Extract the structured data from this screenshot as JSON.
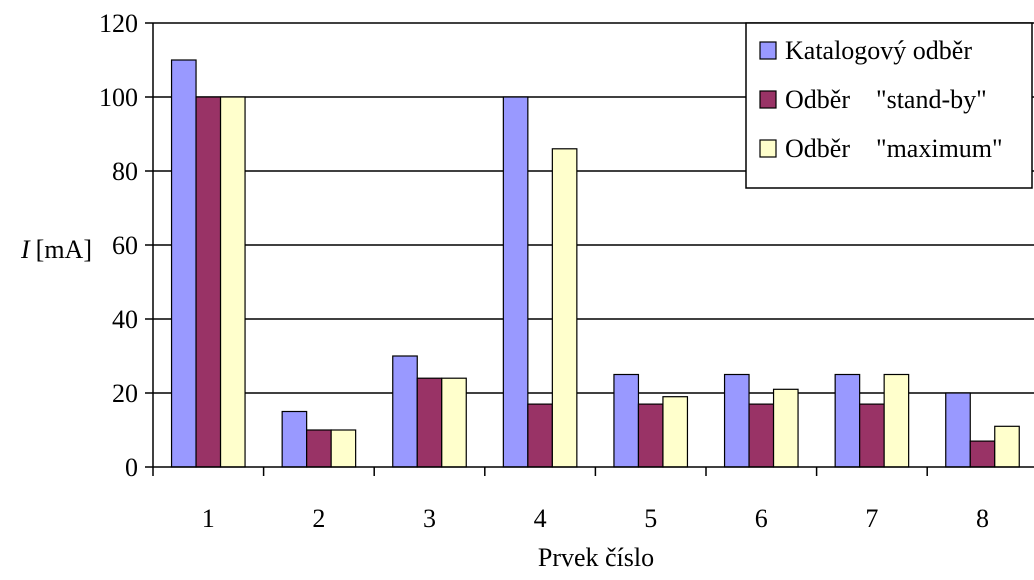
{
  "chart_data": {
    "type": "bar",
    "categories": [
      "1",
      "2",
      "3",
      "4",
      "5",
      "6",
      "7",
      "8"
    ],
    "series": [
      {
        "name": "Katalogový odběr",
        "color": "#9999ff",
        "values": [
          110,
          15,
          30,
          100,
          25,
          25,
          25,
          20
        ]
      },
      {
        "name": "Odběr    \"stand-by\"",
        "color": "#993366",
        "values": [
          100,
          10,
          24,
          17,
          17,
          17,
          17,
          7
        ]
      },
      {
        "name": "Odběr    \"maximum\"",
        "color": "#ffffcc",
        "values": [
          100,
          10,
          24,
          86,
          19,
          21,
          25,
          11
        ]
      }
    ],
    "title": "",
    "ylabel_symbol": "I",
    "ylabel_unit": "[mA]",
    "xlabel": "Prvek číslo",
    "ylim": [
      0,
      120
    ],
    "yticks": [
      0,
      20,
      40,
      60,
      80,
      100,
      120
    ],
    "grid": true,
    "legend_position": "top-right"
  }
}
